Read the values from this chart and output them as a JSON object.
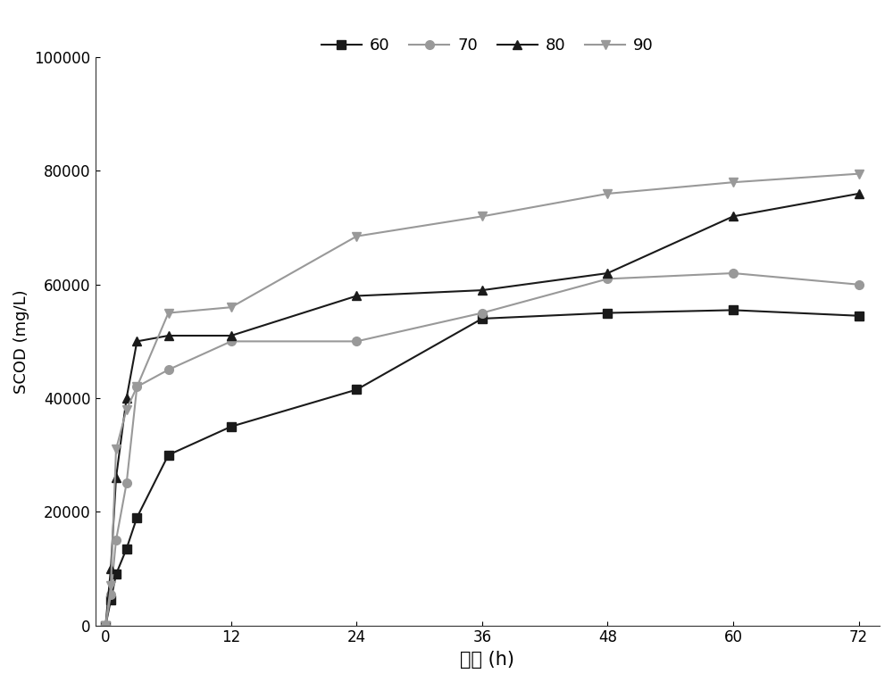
{
  "x": [
    0,
    0.5,
    1,
    2,
    3,
    6,
    12,
    24,
    36,
    48,
    60,
    72
  ],
  "series": {
    "60": [
      0,
      4500,
      9000,
      13500,
      19000,
      30000,
      35000,
      41500,
      54000,
      55000,
      55500,
      54500
    ],
    "70": [
      0,
      5500,
      15000,
      25000,
      42000,
      45000,
      50000,
      50000,
      55000,
      61000,
      62000,
      60000
    ],
    "80": [
      0,
      10000,
      26000,
      40000,
      50000,
      51000,
      51000,
      58000,
      59000,
      62000,
      72000,
      76000
    ],
    "90": [
      0,
      7000,
      31000,
      38000,
      42000,
      55000,
      56000,
      68500,
      72000,
      76000,
      78000,
      79500
    ]
  },
  "colors": {
    "60": "#1a1a1a",
    "70": "#999999",
    "80": "#1a1a1a",
    "90": "#999999"
  },
  "markers": {
    "60": "s",
    "70": "o",
    "80": "^",
    "90": "v"
  },
  "ylabel": "SCOD (mg/L)",
  "xlabel": "时间 (h)",
  "ylim": [
    0,
    100000
  ],
  "xlim": [
    -1,
    74
  ],
  "yticks": [
    0,
    20000,
    40000,
    60000,
    80000,
    100000
  ],
  "xticks": [
    0,
    12,
    24,
    36,
    48,
    60,
    72
  ],
  "legend_labels": [
    "60",
    "70",
    "80",
    "90"
  ],
  "markersize": 7,
  "linewidth": 1.5,
  "figsize": [
    10.0,
    7.64
  ],
  "dpi": 100
}
